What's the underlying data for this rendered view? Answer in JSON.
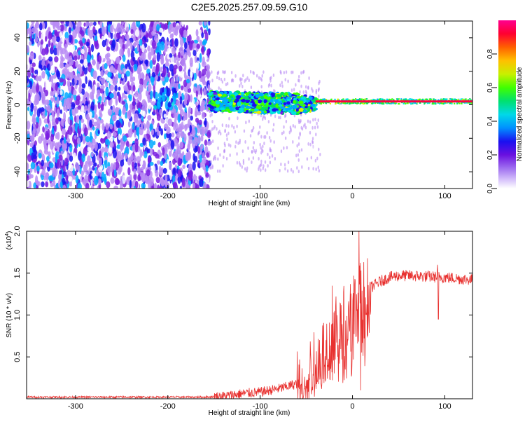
{
  "figure_title": "C2E5.2025.257.09.59.G10",
  "chart_data": [
    {
      "type": "heatmap",
      "title": "C2E5.2025.257.09.59.G10",
      "xlabel": "Height of straight line (km)",
      "ylabel": "Frequency (Hz)",
      "xlim": [
        -353,
        130
      ],
      "ylim": [
        -50,
        50
      ],
      "xticks": [
        -300,
        -200,
        -100,
        0,
        100
      ],
      "yticks": [
        -40,
        -20,
        0,
        20,
        40
      ],
      "colorbar": {
        "label": "Normalized spectral amplitude",
        "range": [
          0.0,
          1.0
        ],
        "ticks": [
          "0.0",
          "0.2",
          "0.4",
          "0.6",
          "0.8"
        ],
        "colors": [
          "#ffffff",
          "#b98cf5",
          "#7a1fe0",
          "#1a10f0",
          "#00aaff",
          "#00e0e0",
          "#00e060",
          "#40ff00",
          "#e0f000",
          "#ffb000",
          "#ff4000",
          "#ff0040",
          "#ff0090"
        ]
      },
      "regions": [
        {
          "x_range": [
            -353,
            -155
          ],
          "description": "broadband noise, amplitude 0.05-0.35"
        },
        {
          "x_range": [
            -155,
            -40
          ],
          "center_freq_hz": 2,
          "bandwidth_hz": 6,
          "amplitude": 0.45
        },
        {
          "x_range": [
            -40,
            130
          ],
          "center_freq_hz": 2,
          "bandwidth_hz": 1.5,
          "amplitude": 0.9
        }
      ]
    },
    {
      "type": "line",
      "xlabel": "Height of straight line (km)",
      "ylabel": "SNR (10 * v/v)",
      "ylabel_multiplier": "(x10",
      "ylabel_multiplier_exp": "4",
      "ylabel_multiplier_close": ")",
      "xlim": [
        -353,
        130
      ],
      "ylim": [
        0,
        2.0
      ],
      "xticks": [
        -300,
        -200,
        -100,
        0,
        100
      ],
      "yticks": [
        "0.5",
        "1.0",
        "1.5",
        "2.0"
      ],
      "series_color": "#e8312f",
      "series": [
        {
          "name": "SNR",
          "x": [
            -353,
            -300,
            -250,
            -200,
            -160,
            -140,
            -120,
            -100,
            -80,
            -60,
            -50,
            -40,
            -30,
            -20,
            -10,
            0,
            5,
            10,
            20,
            30,
            40,
            50,
            60,
            80,
            100,
            120,
            130
          ],
          "values": [
            0.02,
            0.02,
            0.02,
            0.02,
            0.02,
            0.03,
            0.06,
            0.08,
            0.12,
            0.18,
            0.28,
            0.4,
            0.6,
            0.8,
            0.95,
            1.1,
            1.18,
            1.25,
            1.33,
            1.4,
            1.45,
            1.47,
            1.47,
            1.46,
            1.45,
            1.43,
            1.42
          ],
          "spikes": [
            {
              "x": 7,
              "value": 2.0
            },
            {
              "x": 9,
              "value": 0.1
            },
            {
              "x": -22,
              "value": 1.35
            },
            {
              "x": 93,
              "value": 0.95
            },
            {
              "x": 92,
              "value": 1.6
            }
          ]
        }
      ]
    }
  ]
}
